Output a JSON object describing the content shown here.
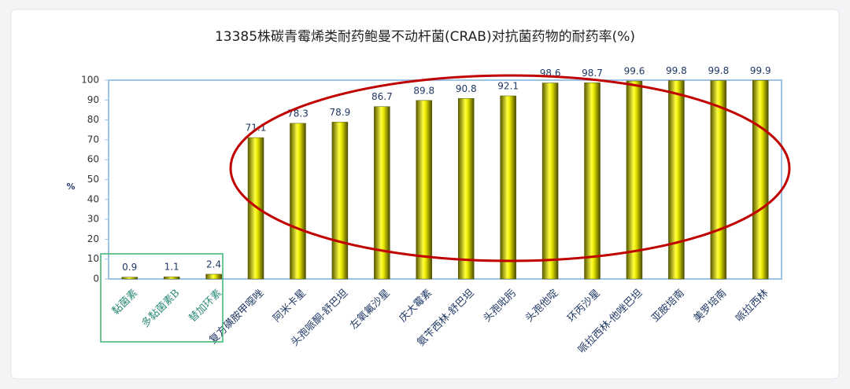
{
  "chart_data": {
    "type": "bar",
    "title": "13385株碳青霉烯类耐药鲍曼不动杆菌(CRAB)对抗菌药物的耐药率(%)",
    "y_label": "%",
    "categories": [
      "黏菌素",
      "多黏菌素B",
      "替加环素",
      "复方磺胺甲噁唑",
      "阿米卡星",
      "头孢哌酮-舒巴坦",
      "左氧氟沙星",
      "庆大霉素",
      "氨苄西林-舒巴坦",
      "头孢吡肟",
      "头孢他啶",
      "环丙沙星",
      "哌拉西林-他唑巴坦",
      "亚胺培南",
      "美罗培南",
      "哌拉西林"
    ],
    "values": [
      0.9,
      1.1,
      2.4,
      71.1,
      78.3,
      78.9,
      86.7,
      89.8,
      90.8,
      92.1,
      98.6,
      98.7,
      99.6,
      99.8,
      99.8,
      99.9
    ],
    "color": "#e8e800",
    "ylim": [
      0,
      100
    ],
    "yticks": [
      0,
      10,
      20,
      30,
      40,
      50,
      60,
      70,
      80,
      90,
      100
    ]
  }
}
